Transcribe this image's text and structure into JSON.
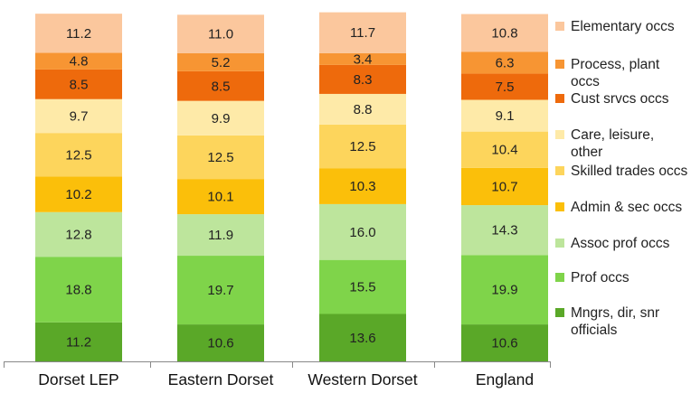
{
  "chart_data": {
    "type": "bar",
    "stacked": true,
    "percent_stacked": true,
    "categories": [
      "Dorset LEP",
      "Eastern Dorset",
      "Western Dorset",
      "England"
    ],
    "series": [
      {
        "name": "Mngrs, dir, snr officials",
        "color": "#5aa828",
        "values": [
          11.2,
          10.6,
          13.6,
          10.6
        ]
      },
      {
        "name": "Prof occs",
        "color": "#7fd44a",
        "values": [
          18.8,
          19.7,
          15.5,
          19.9
        ]
      },
      {
        "name": "Assoc prof occs",
        "color": "#bde59c",
        "values": [
          12.8,
          11.9,
          16.0,
          14.3
        ]
      },
      {
        "name": "Admin & sec occs",
        "color": "#fbbf0a",
        "values": [
          10.2,
          10.1,
          10.3,
          10.7
        ]
      },
      {
        "name": "Skilled trades occs",
        "color": "#fdd55c",
        "values": [
          12.5,
          12.5,
          12.5,
          10.4
        ]
      },
      {
        "name": "Care, leisure, other",
        "color": "#feeaa8",
        "values": [
          9.7,
          9.9,
          8.8,
          9.1
        ]
      },
      {
        "name": "Cust srvcs occs",
        "color": "#ee6a0c",
        "values": [
          8.5,
          8.5,
          8.3,
          7.5
        ]
      },
      {
        "name": "Process, plant occs",
        "color": "#f79533",
        "values": [
          4.8,
          5.2,
          3.4,
          6.3
        ]
      },
      {
        "name": "Elementary occs",
        "color": "#fbc79d",
        "values": [
          11.2,
          11.0,
          11.7,
          10.8
        ]
      }
    ],
    "data_labels": true,
    "ylim": [
      0,
      100
    ],
    "grid": false,
    "legend_position": "right"
  }
}
